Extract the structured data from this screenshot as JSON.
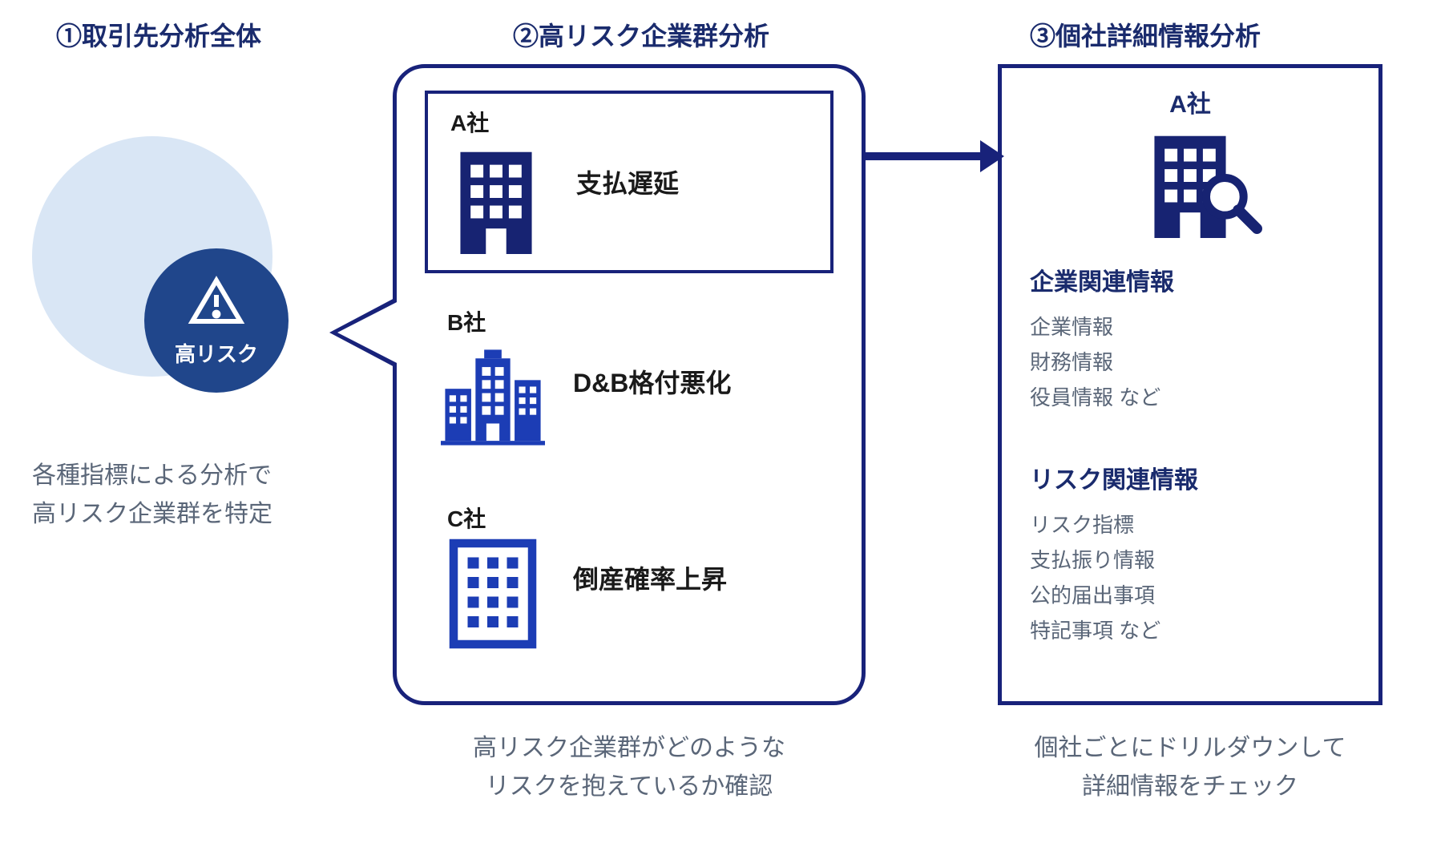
{
  "type": "infographic",
  "colors": {
    "primary_dark": "#18227a",
    "primary_mid": "#20468b",
    "primary_light": "#d9e6f5",
    "text_heading": "#1a2b6d",
    "text_body": "#5a6678",
    "text_black": "#1a1a1a",
    "white": "#ffffff"
  },
  "typography": {
    "heading_fontsize": 32,
    "body_fontsize": 30,
    "label_fontsize": 28
  },
  "sections": {
    "s1": {
      "title": "①取引先分析全体",
      "high_risk_label": "高リスク",
      "description": "各種指標による分析で\n高リスク企業群を特定"
    },
    "s2": {
      "title": "②高リスク企業群分析",
      "companies": [
        {
          "name": "A社",
          "risk": "支払遅延",
          "highlighted": true
        },
        {
          "name": "B社",
          "risk": "D&B格付悪化",
          "highlighted": false
        },
        {
          "name": "C社",
          "risk": "倒産確率上昇",
          "highlighted": false
        }
      ],
      "description": "高リスク企業群がどのような\nリスクを抱えているか確認"
    },
    "s3": {
      "title": "③個社詳細情報分析",
      "company_name": "A社",
      "groups": [
        {
          "heading": "企業関連情報",
          "items": [
            "企業情報",
            "財務情報",
            "役員情報 など"
          ]
        },
        {
          "heading": "リスク関連情報",
          "items": [
            "リスク指標",
            "支払振り情報",
            "公的届出事項",
            "特記事項 など"
          ]
        }
      ],
      "description": "個社ごとにドリルダウンして\n詳細情報をチェック"
    }
  }
}
